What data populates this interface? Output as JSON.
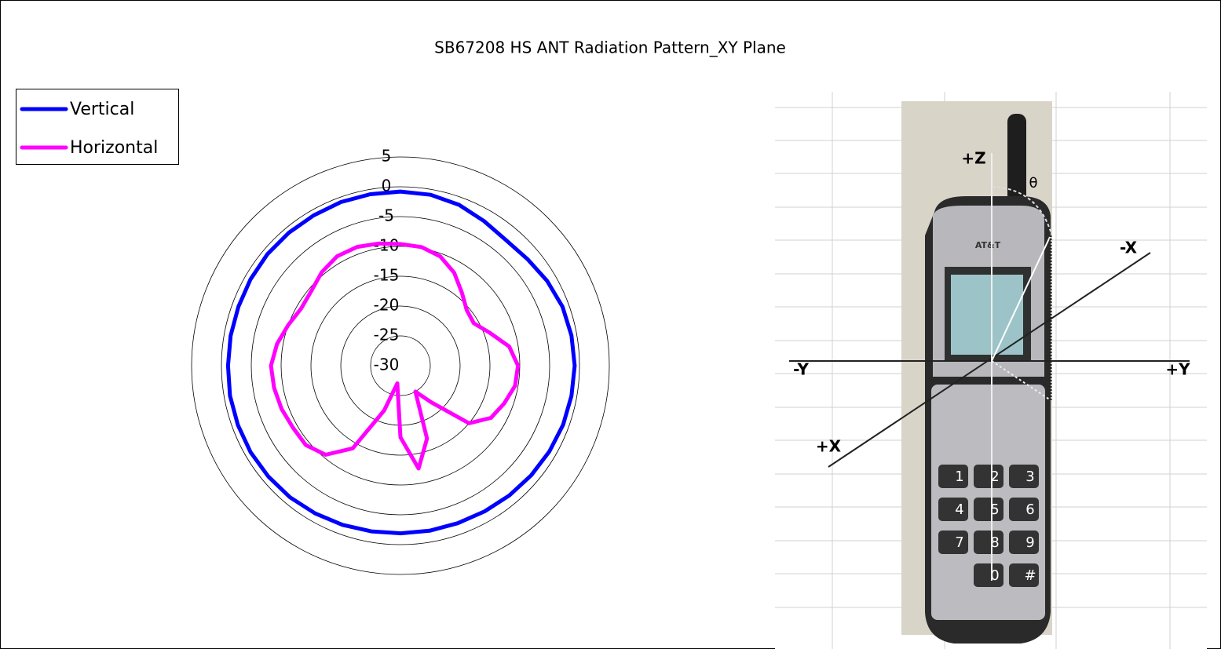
{
  "chart_data": {
    "type": "radar",
    "title": "SB67208 HS ANT Radiation Pattern_XY Plane",
    "categories": [
      null,
      null,
      null,
      null,
      null,
      null,
      null,
      null,
      null,
      null,
      null,
      null,
      null,
      null,
      null,
      null,
      null,
      null,
      null,
      null,
      null,
      null,
      null,
      null,
      null,
      null,
      null,
      null,
      null,
      null,
      null,
      null,
      null,
      null,
      null,
      null
    ],
    "series": [
      {
        "name": "Vertical",
        "color": "#0000ff",
        "values": [
          -0.8,
          -0.9,
          -1.3,
          -2,
          -2.5,
          -2.2,
          -1.6,
          -1.1,
          -0.9,
          -0.8,
          -0.9,
          -1,
          -1.2,
          -1.4,
          -1.6,
          -1.8,
          -1.9,
          -1.9,
          -1.9,
          -1.8,
          -1.6,
          -1.4,
          -1.2,
          -1.1,
          -1,
          -1,
          -1,
          -1.1,
          -1.1,
          -1.1,
          -1,
          -0.9,
          -0.9,
          -0.9,
          -0.8,
          -0.8
        ]
      },
      {
        "name": "Horizontal",
        "color": "#ff00ff",
        "values": [
          -9.6,
          -9.8,
          -10.5,
          -12,
          -14,
          -15.5,
          -15.8,
          -14,
          -11.5,
          -10.3,
          -10.5,
          -11.5,
          -12.5,
          -15,
          -22,
          -25,
          -17,
          -12.5,
          -18,
          -27,
          -22,
          -14,
          -10.5,
          -9.3,
          -9.2,
          -8.8,
          -8.5,
          -8.3,
          -9,
          -10,
          -10.8,
          -10.5,
          -9.5,
          -8.8,
          -8.8,
          -9.2
        ]
      }
    ],
    "ylim": [
      -30,
      5
    ],
    "yticks": [
      -30,
      -25,
      -20,
      -15,
      -10,
      -5,
      0,
      5
    ],
    "grid": true,
    "legend": "top-left"
  },
  "image": {
    "labels": {
      "plus_z": "+Z",
      "theta": "θ",
      "minus_x": "-X",
      "minus_y": "-Y",
      "plus_y": "+Y",
      "plus_x": "+X"
    },
    "brand": "AT&T",
    "keys": [
      "1",
      "2",
      "3",
      "4",
      "5",
      "6",
      "7",
      "8",
      "9",
      "0",
      "#"
    ]
  }
}
